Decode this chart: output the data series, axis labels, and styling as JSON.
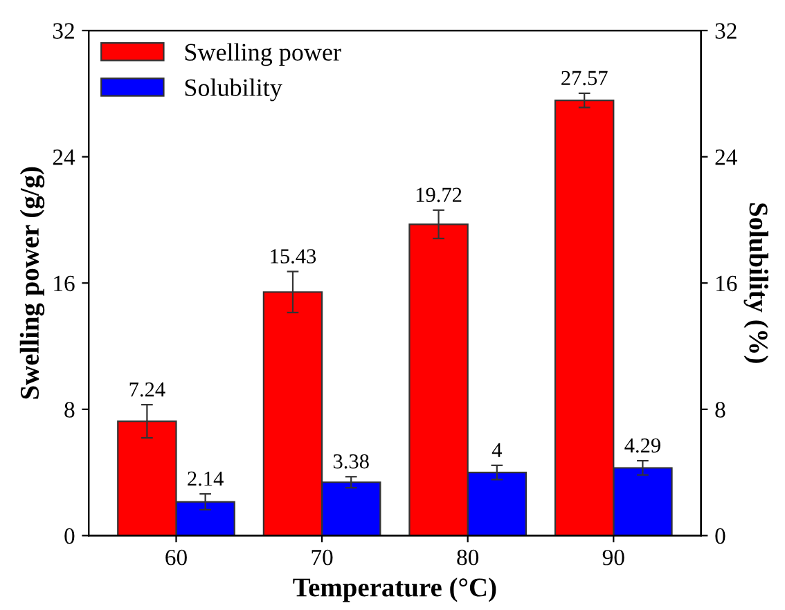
{
  "chart_data": {
    "type": "bar",
    "xlabel": "Temperature (°C)",
    "ylabel": "Swelling power (g/g)",
    "y2label": "Solubility (%)",
    "categories": [
      "60",
      "70",
      "80",
      "90"
    ],
    "series": [
      {
        "name": "Swelling power",
        "color": "#ff0000",
        "values": [
          7.24,
          15.43,
          19.72,
          27.57
        ],
        "errors": [
          1.05,
          1.3,
          0.9,
          0.45
        ]
      },
      {
        "name": "Solubility",
        "color": "#0000ff",
        "values": [
          2.14,
          3.38,
          4,
          4.29
        ],
        "errors": [
          0.5,
          0.35,
          0.45,
          0.45
        ],
        "axis": "y2"
      }
    ],
    "ylim": [
      0,
      32
    ],
    "yticks": [
      0,
      8,
      16,
      24,
      32
    ],
    "y2lim": [
      0,
      32
    ],
    "y2ticks": [
      0,
      8,
      16,
      24,
      32
    ],
    "data_labels": true,
    "legend": "top left",
    "grid": false
  }
}
